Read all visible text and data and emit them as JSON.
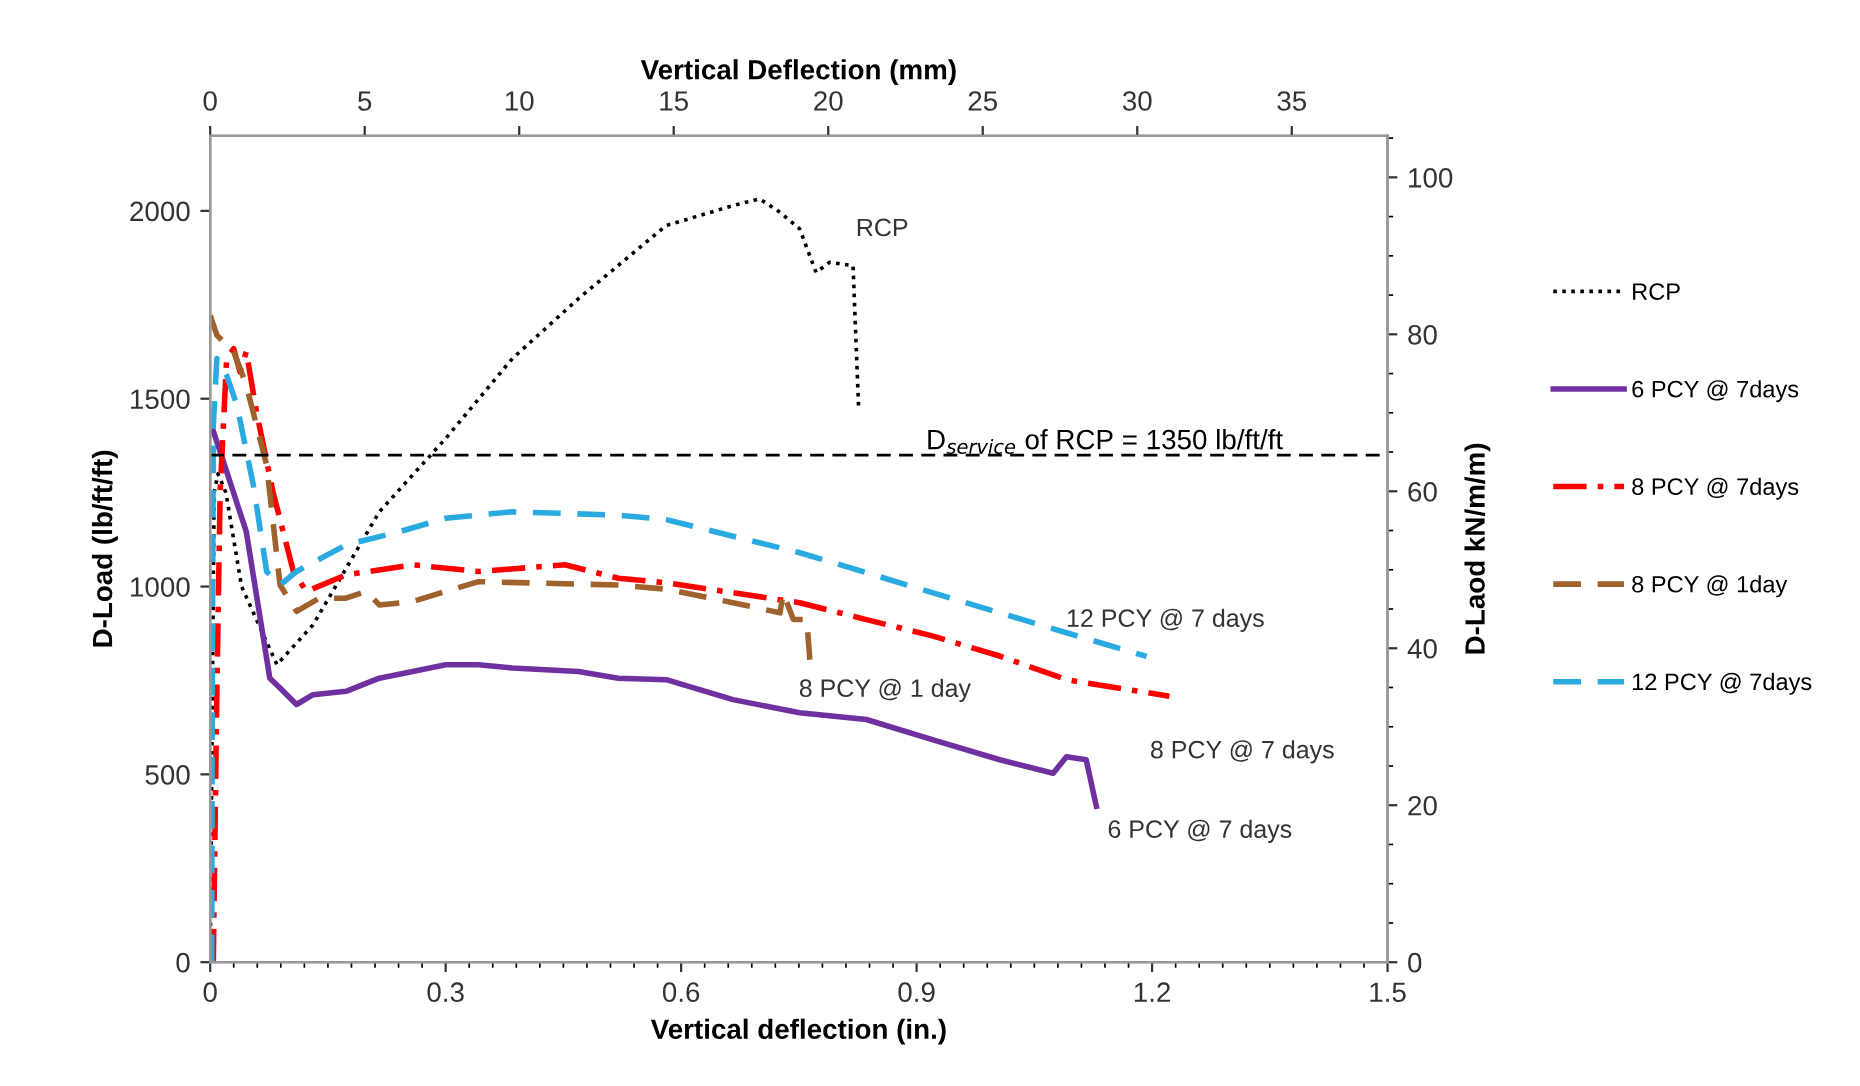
{
  "chart_data": {
    "type": "line",
    "xlabel": "Vertical deflection (in.)",
    "ylabel": "D-Load (lb/ft/ft)",
    "y2label": "D-Laod kN/m/m)",
    "x2label": "Vertical Deflection (mm)",
    "xlim": [
      0,
      1.5
    ],
    "xticks": [
      0,
      0.3,
      0.6,
      0.9,
      1.2,
      1.5
    ],
    "ylim": [
      0,
      2200
    ],
    "yticks": [
      0,
      500,
      1000,
      1500,
      2000
    ],
    "x2lim": [
      0,
      38.1
    ],
    "x2ticks": [
      0,
      5,
      10,
      15,
      20,
      25,
      30,
      35
    ],
    "y2lim": [
      0,
      105.3
    ],
    "y2ticks": [
      0,
      20,
      40,
      60,
      80,
      100
    ],
    "grid": false,
    "legend": "right",
    "marker": "none",
    "series": [
      {
        "name": "RCP",
        "color": "#000000",
        "line_style": "dotted",
        "x": [
          0,
          0.005,
          0.01,
          0.02,
          0.04,
          0.085,
          0.131,
          0.2155,
          0.3,
          0.385,
          0.469,
          0.52,
          0.581,
          0.666,
          0.7,
          0.726,
          0.751,
          0.772,
          0.789,
          0.819,
          0.826
        ],
        "values": [
          0,
          1250,
          1300,
          1250,
          1000,
          792,
          898,
          1199,
          1394,
          1607,
          1766,
          1855,
          1961,
          2014,
          2032,
          1996,
          1952,
          1836,
          1863,
          1854,
          1481
        ]
      },
      {
        "name": "6 PCY @ 7days",
        "color": "#7030a0",
        "line_style": "solid",
        "x": [
          0,
          0.0127,
          0.046,
          0.076,
          0.089,
          0.11,
          0.131,
          0.173,
          0.2155,
          0.258,
          0.3,
          0.342,
          0.385,
          0.469,
          0.52,
          0.581,
          0.666,
          0.751,
          0.836,
          0.921,
          1.006,
          1.074,
          1.091,
          1.116,
          1.129
        ],
        "values": [
          1438,
          1359,
          1146,
          756,
          730,
          686,
          712,
          721,
          756,
          774,
          792,
          792,
          783,
          774,
          756,
          752,
          699,
          664,
          646,
          592,
          539,
          503,
          547,
          539,
          415
        ]
      },
      {
        "name": "8 PCY @ 7days",
        "color": "#ff0000",
        "line_style": "dashdot",
        "x": [
          0.004,
          0.0085,
          0.0127,
          0.021,
          0.03,
          0.038,
          0.046,
          0.059,
          0.08,
          0.106,
          0.1225,
          0.173,
          0.258,
          0.342,
          0.452,
          0.52,
          0.581,
          0.751,
          0.836,
          0.921,
          1.006,
          1.091,
          1.222
        ],
        "values": [
          0,
          721,
          1252,
          1607,
          1633,
          1571,
          1625,
          1465,
          1252,
          1040,
          987,
          1031,
          1058,
          1040,
          1058,
          1022,
          1010,
          957,
          912,
          868,
          815,
          752,
          708
        ]
      },
      {
        "name": "8 PCY @ 1day",
        "color": "#a0622d",
        "line_style": "dashed",
        "x": [
          0,
          0.0085,
          0.03,
          0.046,
          0.072,
          0.089,
          0.11,
          0.139,
          0.173,
          0.199,
          0.2155,
          0.258,
          0.3,
          0.342,
          0.52,
          0.581,
          0.666,
          0.726,
          0.73,
          0.743,
          0.76,
          0.764
        ],
        "values": [
          1722,
          1669,
          1625,
          1536,
          1323,
          1004,
          934,
          969,
          969,
          987,
          951,
          960,
          987,
          1013,
          1004,
          993,
          957,
          930,
          983,
          912,
          912,
          805
        ]
      },
      {
        "name": "12 PCY @ 7days",
        "color": "#29abe2",
        "line_style": "dashed",
        "x": [
          0.002,
          0.0025,
          0.004,
          0.0085,
          0.021,
          0.034,
          0.055,
          0.072,
          0.089,
          0.11,
          0.173,
          0.241,
          0.3,
          0.385,
          0.52,
          0.581,
          0.666,
          0.751,
          0.836,
          0.921,
          1.006,
          1.091,
          1.193
        ],
        "values": [
          0,
          632,
          1430,
          1607,
          1562,
          1483,
          1270,
          1040,
          1004,
          1040,
          1111,
          1146,
          1182,
          1199,
          1190,
          1178,
          1134,
          1090,
          1037,
          983,
          930,
          877,
          814
        ]
      }
    ],
    "ref_lines": [
      {
        "axis": "y",
        "value": 1350,
        "label": "D$_{service}$ of RCP = 1350 lb/ft/ft",
        "color": "#000000",
        "line_style": "dashed"
      }
    ],
    "annotations": [
      {
        "text": "RCP",
        "x": 0.819,
        "y": 1854
      },
      {
        "text": "12 PCY @ 7 days",
        "x": 1.193,
        "y": 814
      },
      {
        "text": "8 PCY @ 1 day",
        "x": 0.764,
        "y": 805
      },
      {
        "text": "8 PCY @ 7 days",
        "x": 1.222,
        "y": 708
      },
      {
        "text": "6 PCY @ 7 days",
        "x": 1.129,
        "y": 415
      }
    ]
  }
}
